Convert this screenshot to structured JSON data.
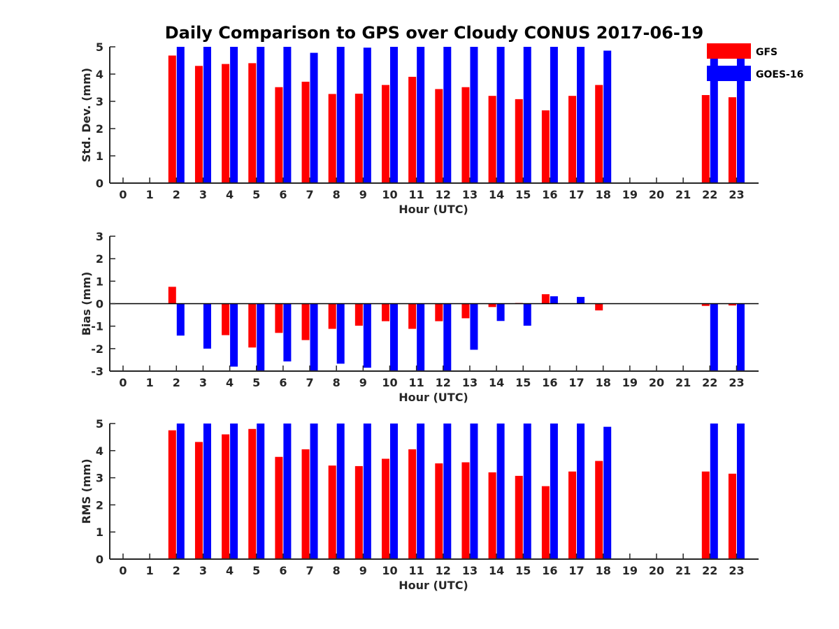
{
  "chart_data": {
    "title": "Daily Comparison to GPS over Cloudy CONUS 2017-06-19",
    "legend": {
      "placement": "top-right",
      "entries": [
        {
          "name": "GFS",
          "color": "#ff0000"
        },
        {
          "name": "GOES-16",
          "color": "#0000ff"
        }
      ]
    },
    "panels": [
      {
        "type": "bar",
        "ylabel": "Std. Dev. (mm)",
        "xlabel": "Hour (UTC)",
        "ylim": [
          0,
          5
        ],
        "yticks": [
          "0",
          "1",
          "2",
          "3",
          "4",
          "5"
        ],
        "categories": [
          "0",
          "1",
          "2",
          "3",
          "4",
          "5",
          "6",
          "7",
          "8",
          "9",
          "10",
          "11",
          "12",
          "13",
          "14",
          "15",
          "16",
          "17",
          "18",
          "19",
          "20",
          "21",
          "22",
          "23"
        ],
        "series": [
          {
            "name": "GFS",
            "color": "#ff0000",
            "values": [
              null,
              null,
              4.68,
              4.3,
              4.37,
              4.4,
              3.52,
              3.72,
              3.27,
              3.28,
              3.6,
              3.9,
              3.45,
              3.52,
              3.2,
              3.08,
              2.67,
              3.2,
              3.6,
              null,
              null,
              null,
              3.23,
              3.15
            ]
          },
          {
            "name": "GOES-16",
            "color": "#0000ff",
            "values": [
              null,
              null,
              5,
              5,
              5,
              5,
              5,
              4.78,
              5,
              4.97,
              5,
              5,
              5,
              5,
              5,
              5,
              5,
              5,
              4.86,
              null,
              null,
              null,
              5,
              5
            ]
          }
        ],
        "baseline": false
      },
      {
        "type": "bar",
        "ylabel": "Bias (mm)",
        "xlabel": "Hour (UTC)",
        "ylim": [
          -3,
          3
        ],
        "yticks": [
          "-3",
          "-2",
          "-1",
          "0",
          "1",
          "2",
          "3"
        ],
        "categories": [
          "0",
          "1",
          "2",
          "3",
          "4",
          "5",
          "6",
          "7",
          "8",
          "9",
          "10",
          "11",
          "12",
          "13",
          "14",
          "15",
          "16",
          "17",
          "18",
          "19",
          "20",
          "21",
          "22",
          "23"
        ],
        "series": [
          {
            "name": "GFS",
            "color": "#ff0000",
            "values": [
              null,
              null,
              0.75,
              null,
              -1.4,
              -1.95,
              -1.3,
              -1.62,
              -1.12,
              -0.98,
              -0.78,
              -1.12,
              -0.78,
              -0.65,
              -0.15,
              0.03,
              0.42,
              null,
              -0.3,
              null,
              null,
              null,
              -0.1,
              -0.08
            ]
          },
          {
            "name": "GOES-16",
            "color": "#0000ff",
            "values": [
              null,
              null,
              -1.42,
              -2.0,
              -2.8,
              -3.0,
              -2.57,
              -3.0,
              -2.67,
              -2.85,
              -3.0,
              -3.0,
              -3.0,
              -2.05,
              -0.77,
              -0.98,
              0.33,
              0.3,
              null,
              null,
              null,
              null,
              -3.0,
              -3.0
            ]
          }
        ],
        "baseline": true
      },
      {
        "type": "bar",
        "ylabel": "RMS (mm)",
        "xlabel": "Hour (UTC)",
        "ylim": [
          0,
          5
        ],
        "yticks": [
          "0",
          "1",
          "2",
          "3",
          "4",
          "5"
        ],
        "categories": [
          "0",
          "1",
          "2",
          "3",
          "4",
          "5",
          "6",
          "7",
          "8",
          "9",
          "10",
          "11",
          "12",
          "13",
          "14",
          "15",
          "16",
          "17",
          "18",
          "19",
          "20",
          "21",
          "22",
          "23"
        ],
        "series": [
          {
            "name": "GFS",
            "color": "#ff0000",
            "values": [
              null,
              null,
              4.75,
              4.32,
              4.6,
              4.8,
              3.77,
              4.05,
              3.45,
              3.43,
              3.7,
              4.05,
              3.53,
              3.57,
              3.2,
              3.07,
              2.69,
              3.23,
              3.62,
              null,
              null,
              null,
              3.23,
              3.15
            ]
          },
          {
            "name": "GOES-16",
            "color": "#0000ff",
            "values": [
              null,
              null,
              5,
              5,
              5,
              5,
              5,
              5,
              5,
              5,
              5,
              5,
              5,
              5,
              5,
              5,
              5,
              5,
              4.88,
              null,
              null,
              null,
              5,
              5
            ]
          }
        ],
        "baseline": false
      }
    ]
  }
}
